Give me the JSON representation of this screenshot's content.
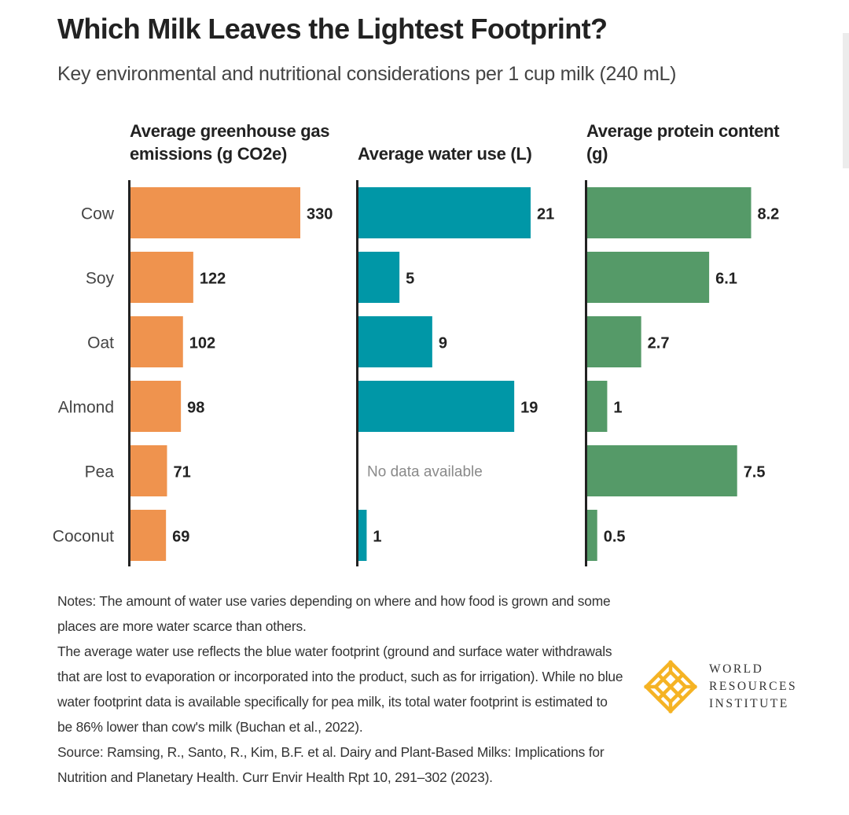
{
  "header": {
    "title": "Which Milk Leaves the Lightest Footprint?",
    "subtitle": "Key environmental and nutritional considerations per 1 cup milk (240 mL)"
  },
  "chart_data": [
    {
      "type": "bar",
      "orientation": "horizontal",
      "title": "Average greenhouse gas\nemissions (g CO2e)",
      "categories": [
        "Cow",
        "Soy",
        "Oat",
        "Almond",
        "Pea",
        "Coconut"
      ],
      "values": [
        330,
        122,
        102,
        98,
        71,
        69
      ],
      "labels": [
        "330",
        "122",
        "102",
        "98",
        "71",
        "69"
      ],
      "color": "#EF934E"
    },
    {
      "type": "bar",
      "orientation": "horizontal",
      "title": "Average water use (L)",
      "categories": [
        "Cow",
        "Soy",
        "Oat",
        "Almond",
        "Pea",
        "Coconut"
      ],
      "values": [
        21,
        5,
        9,
        19,
        null,
        1
      ],
      "labels": [
        "21",
        "5",
        "9",
        "19",
        "No data available",
        "1"
      ],
      "color": "#0097A7"
    },
    {
      "type": "bar",
      "orientation": "horizontal",
      "title": "Average protein content\n(g)",
      "categories": [
        "Cow",
        "Soy",
        "Oat",
        "Almond",
        "Pea",
        "Coconut"
      ],
      "values": [
        8.2,
        6.1,
        2.7,
        1,
        7.5,
        0.5
      ],
      "labels": [
        "8.2",
        "6.1",
        "2.7",
        "1",
        "7.5",
        "0.5"
      ],
      "color": "#559A68"
    }
  ],
  "notes": [
    "Notes: The amount of water use varies depending on where and how food is grown and some places are more water scarce than others.",
    "The average water use reflects the blue water footprint (ground and surface water withdrawals that are lost to evaporation or incorporated into the product, such as for irrigation). While no blue water footprint data is available specifically for pea milk, its total water footprint is estimated to be 86% lower than cow's milk (Buchan et al., 2022).",
    "Source: Ramsing, R., Santo, R., Kim, B.F. et al. Dairy and Plant-Based Milks: Implications for Nutrition and Planetary Health. Curr Envir Health Rpt 10, 291–302 (2023)."
  ],
  "logo": {
    "lines": [
      "WORLD",
      "RESOURCES",
      "INSTITUTE"
    ],
    "color": "#F5B324"
  }
}
